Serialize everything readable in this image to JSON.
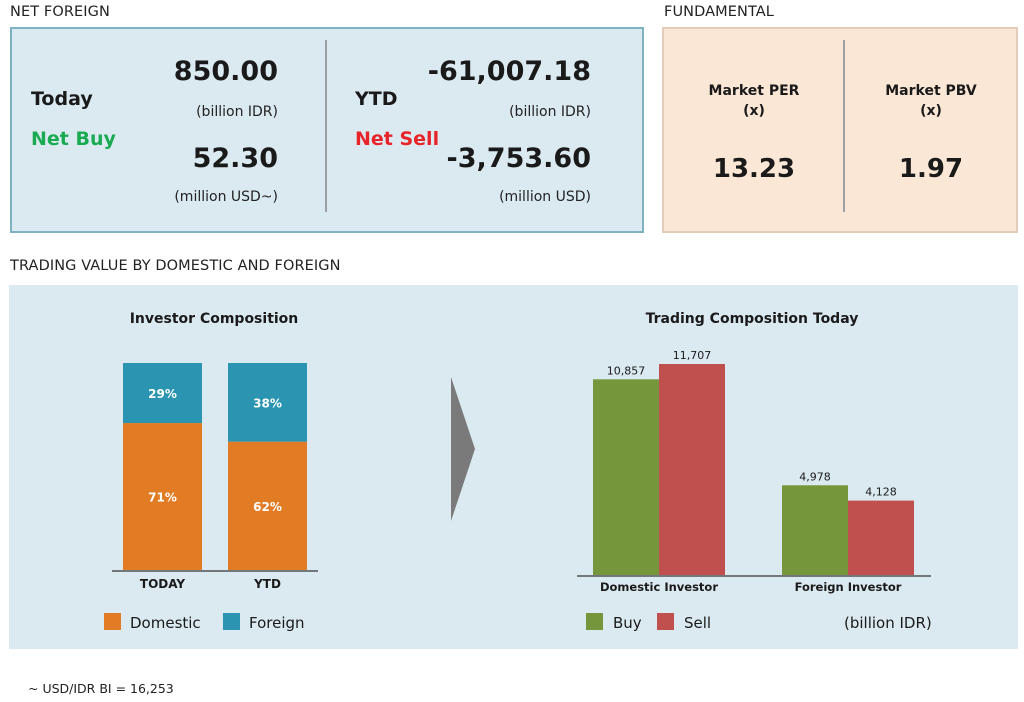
{
  "net_foreign": {
    "section_title": "NET FOREIGN",
    "today": {
      "label": "Today",
      "status": "Net Buy",
      "idr_value": "850.00",
      "idr_unit": "(billion IDR)",
      "usd_value": "52.30",
      "usd_unit": "(million USD~)"
    },
    "ytd": {
      "label": "YTD",
      "status": "Net Sell",
      "idr_value": "-61,007.18",
      "idr_unit": "(billion IDR)",
      "usd_value": "-3,753.60",
      "usd_unit": "(million USD)"
    },
    "colors": {
      "net_buy": "#1aaa52",
      "net_sell": "#e8232a"
    }
  },
  "fundamental": {
    "section_title": "FUNDAMENTAL",
    "per": {
      "label_line1": "Market PER",
      "label_line2": "(x)",
      "value": "13.23"
    },
    "pbv": {
      "label_line1": "Market PBV",
      "label_line2": "(x)",
      "value": "1.97"
    }
  },
  "trading": {
    "section_title": "TRADING VALUE BY DOMESTIC AND FOREIGN",
    "unit_note": "(billion IDR)"
  },
  "footnote": "~ USD/IDR BI = 16,253",
  "chart_data": [
    {
      "type": "bar",
      "stacked": true,
      "percent": true,
      "title": "Investor Composition",
      "categories": [
        "TODAY",
        "YTD"
      ],
      "series": [
        {
          "name": "Domestic",
          "values": [
            71,
            62
          ],
          "labels": [
            "71%",
            "62%"
          ],
          "color": "#e27c24"
        },
        {
          "name": "Foreign",
          "values": [
            29,
            38
          ],
          "labels": [
            "29%",
            "38%"
          ],
          "color": "#2b94b1"
        }
      ],
      "ylim": [
        0,
        100
      ],
      "legend": "bottom"
    },
    {
      "type": "bar",
      "title": "Trading Composition Today",
      "categories": [
        "Domestic Investor",
        "Foreign Investor"
      ],
      "series": [
        {
          "name": "Buy",
          "values": [
            10857,
            4978
          ],
          "labels": [
            "10,857",
            "4,978"
          ],
          "color": "#76963c"
        },
        {
          "name": "Sell",
          "values": [
            11707,
            4128
          ],
          "labels": [
            "11,707",
            "4,128"
          ],
          "color": "#c0504d"
        }
      ],
      "ylim": [
        0,
        11707
      ],
      "legend": "bottom"
    }
  ]
}
